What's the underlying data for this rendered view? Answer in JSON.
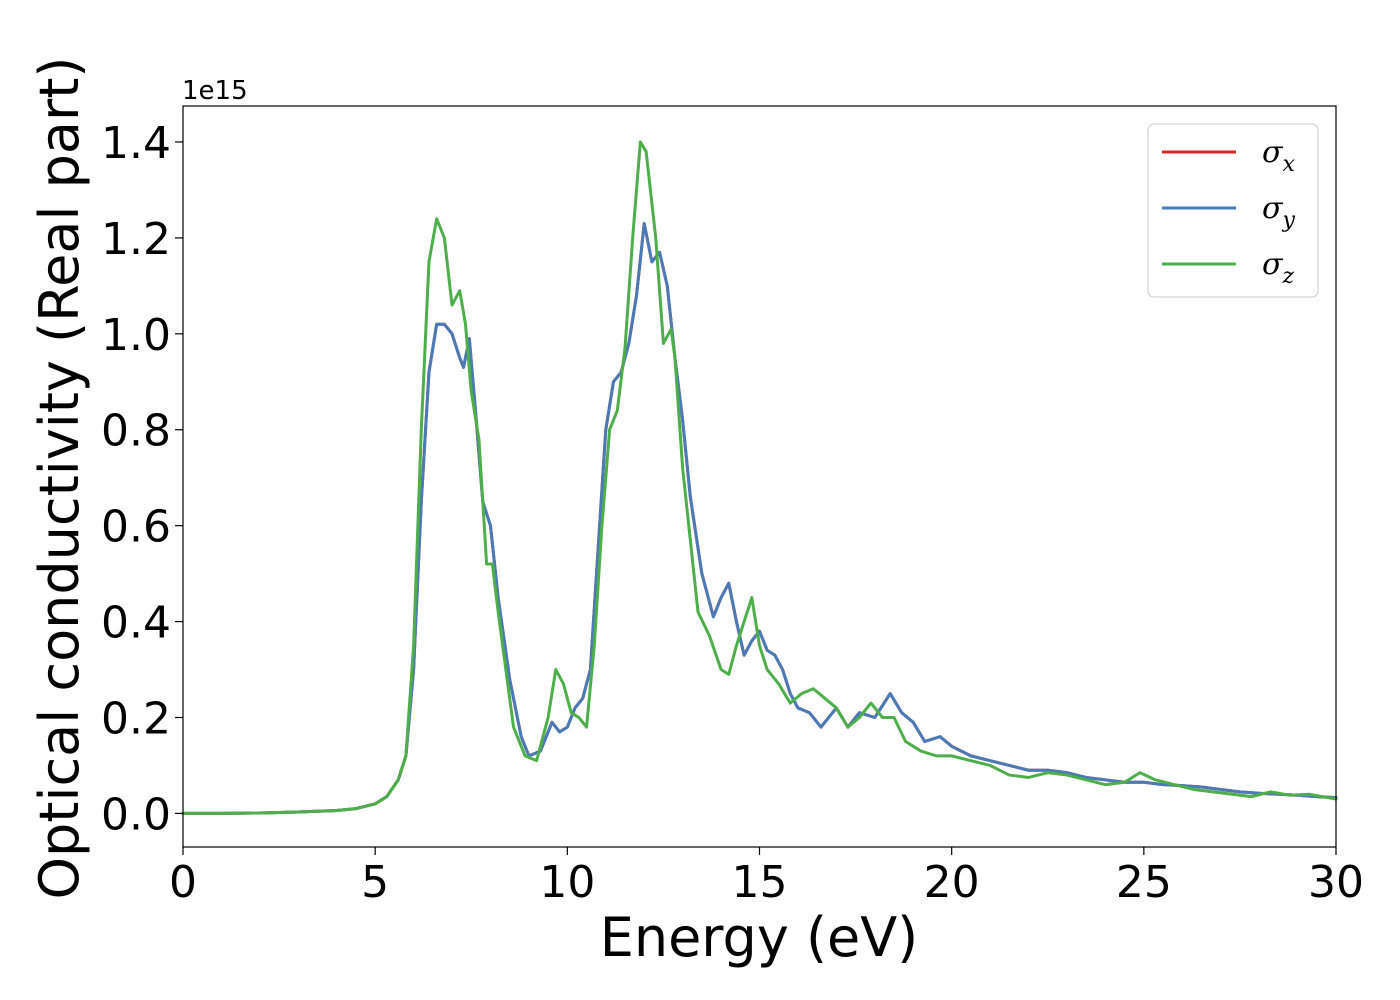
{
  "chart_data": {
    "type": "line",
    "title": "",
    "xlabel": "Energy (eV)",
    "ylabel": "Optical conductivity (Real part)",
    "xlim": [
      0,
      30
    ],
    "ylim": [
      -0.07,
      1.475
    ],
    "y_scale_offset_label": "1e15",
    "x_ticks": [
      0,
      5,
      10,
      15,
      20,
      25,
      30
    ],
    "x_tick_labels": [
      "0",
      "5",
      "10",
      "15",
      "20",
      "25",
      "30"
    ],
    "y_ticks": [
      0.0,
      0.2,
      0.4,
      0.6,
      0.8,
      1.0,
      1.2,
      1.4
    ],
    "y_tick_labels": [
      "0.0",
      "0.2",
      "0.4",
      "0.6",
      "0.8",
      "1.0",
      "1.2",
      "1.4"
    ],
    "grid": false,
    "legend_position": "top-right",
    "series": [
      {
        "name": "σx",
        "legend_symbol": "σ",
        "legend_subscript": "x",
        "color": "#d62728",
        "x": [
          0,
          1,
          2,
          3,
          4,
          4.5,
          5,
          5.3,
          5.6,
          5.8,
          6.0,
          6.2,
          6.4,
          6.6,
          6.8,
          7.0,
          7.2,
          7.3,
          7.45,
          7.6,
          7.8,
          8.0,
          8.2,
          8.5,
          8.8,
          9.0,
          9.3,
          9.6,
          9.8,
          10.0,
          10.2,
          10.4,
          10.6,
          10.8,
          11.0,
          11.2,
          11.4,
          11.6,
          11.8,
          12.0,
          12.2,
          12.4,
          12.6,
          12.8,
          13.0,
          13.2,
          13.5,
          13.8,
          14.0,
          14.2,
          14.4,
          14.6,
          14.8,
          15.0,
          15.2,
          15.4,
          15.6,
          15.8,
          16.0,
          16.3,
          16.6,
          17.0,
          17.3,
          17.6,
          18.0,
          18.4,
          18.7,
          19.0,
          19.3,
          19.7,
          20.0,
          20.5,
          21.0,
          21.5,
          22.0,
          22.5,
          23.0,
          23.5,
          24.0,
          24.5,
          25.0,
          25.5,
          26.0,
          26.5,
          27.0,
          27.5,
          28.0,
          28.5,
          29.0,
          29.5,
          30.0
        ],
        "y": [
          0.0,
          0.0,
          0.001,
          0.003,
          0.006,
          0.01,
          0.02,
          0.035,
          0.07,
          0.12,
          0.3,
          0.65,
          0.92,
          1.02,
          1.02,
          1.0,
          0.95,
          0.93,
          0.99,
          0.85,
          0.65,
          0.6,
          0.45,
          0.28,
          0.16,
          0.12,
          0.13,
          0.19,
          0.17,
          0.18,
          0.22,
          0.24,
          0.3,
          0.55,
          0.8,
          0.9,
          0.92,
          0.98,
          1.08,
          1.23,
          1.15,
          1.17,
          1.1,
          0.95,
          0.82,
          0.66,
          0.5,
          0.41,
          0.45,
          0.48,
          0.4,
          0.33,
          0.36,
          0.38,
          0.34,
          0.33,
          0.3,
          0.25,
          0.22,
          0.21,
          0.18,
          0.22,
          0.18,
          0.21,
          0.2,
          0.25,
          0.21,
          0.19,
          0.15,
          0.16,
          0.14,
          0.12,
          0.11,
          0.1,
          0.09,
          0.09,
          0.085,
          0.075,
          0.07,
          0.065,
          0.065,
          0.06,
          0.058,
          0.055,
          0.05,
          0.045,
          0.042,
          0.04,
          0.038,
          0.035,
          0.033
        ]
      },
      {
        "name": "σy",
        "legend_symbol": "σ",
        "legend_subscript": "y",
        "color": "#4a7bb7",
        "x": [
          0,
          1,
          2,
          3,
          4,
          4.5,
          5,
          5.3,
          5.6,
          5.8,
          6.0,
          6.2,
          6.4,
          6.6,
          6.8,
          7.0,
          7.2,
          7.3,
          7.45,
          7.6,
          7.8,
          8.0,
          8.2,
          8.5,
          8.8,
          9.0,
          9.3,
          9.6,
          9.8,
          10.0,
          10.2,
          10.4,
          10.6,
          10.8,
          11.0,
          11.2,
          11.4,
          11.6,
          11.8,
          12.0,
          12.2,
          12.4,
          12.6,
          12.8,
          13.0,
          13.2,
          13.5,
          13.8,
          14.0,
          14.2,
          14.4,
          14.6,
          14.8,
          15.0,
          15.2,
          15.4,
          15.6,
          15.8,
          16.0,
          16.3,
          16.6,
          17.0,
          17.3,
          17.6,
          18.0,
          18.4,
          18.7,
          19.0,
          19.3,
          19.7,
          20.0,
          20.5,
          21.0,
          21.5,
          22.0,
          22.5,
          23.0,
          23.5,
          24.0,
          24.5,
          25.0,
          25.5,
          26.0,
          26.5,
          27.0,
          27.5,
          28.0,
          28.5,
          29.0,
          29.5,
          30.0
        ],
        "y": [
          0.0,
          0.0,
          0.001,
          0.003,
          0.006,
          0.01,
          0.02,
          0.035,
          0.07,
          0.12,
          0.3,
          0.65,
          0.92,
          1.02,
          1.02,
          1.0,
          0.95,
          0.93,
          0.99,
          0.85,
          0.65,
          0.6,
          0.45,
          0.28,
          0.16,
          0.12,
          0.13,
          0.19,
          0.17,
          0.18,
          0.22,
          0.24,
          0.3,
          0.55,
          0.8,
          0.9,
          0.92,
          0.98,
          1.08,
          1.23,
          1.15,
          1.17,
          1.1,
          0.95,
          0.82,
          0.66,
          0.5,
          0.41,
          0.45,
          0.48,
          0.4,
          0.33,
          0.36,
          0.38,
          0.34,
          0.33,
          0.3,
          0.25,
          0.22,
          0.21,
          0.18,
          0.22,
          0.18,
          0.21,
          0.2,
          0.25,
          0.21,
          0.19,
          0.15,
          0.16,
          0.14,
          0.12,
          0.11,
          0.1,
          0.09,
          0.09,
          0.085,
          0.075,
          0.07,
          0.065,
          0.065,
          0.06,
          0.058,
          0.055,
          0.05,
          0.045,
          0.042,
          0.04,
          0.038,
          0.035,
          0.033
        ]
      },
      {
        "name": "σz",
        "legend_symbol": "σ",
        "legend_subscript": "z",
        "color": "#4daf4a",
        "x": [
          0,
          1,
          2,
          3,
          4,
          4.5,
          5,
          5.3,
          5.6,
          5.8,
          6.0,
          6.2,
          6.4,
          6.6,
          6.8,
          7.0,
          7.2,
          7.35,
          7.5,
          7.7,
          7.9,
          8.05,
          8.2,
          8.4,
          8.6,
          8.9,
          9.2,
          9.5,
          9.7,
          9.9,
          10.1,
          10.3,
          10.5,
          10.7,
          10.9,
          11.1,
          11.3,
          11.5,
          11.7,
          11.9,
          12.05,
          12.3,
          12.5,
          12.7,
          12.8,
          13.0,
          13.2,
          13.4,
          13.7,
          14.0,
          14.2,
          14.4,
          14.6,
          14.8,
          15.0,
          15.2,
          15.5,
          15.8,
          16.1,
          16.4,
          16.7,
          17.0,
          17.3,
          17.6,
          17.9,
          18.2,
          18.5,
          18.8,
          19.2,
          19.6,
          20.0,
          20.5,
          21.0,
          21.5,
          22.0,
          22.5,
          23.0,
          23.5,
          24.0,
          24.5,
          24.9,
          25.3,
          25.8,
          26.3,
          26.8,
          27.3,
          27.8,
          28.3,
          28.8,
          29.3,
          30.0
        ],
        "y": [
          0.0,
          0.0,
          0.001,
          0.003,
          0.006,
          0.01,
          0.02,
          0.035,
          0.07,
          0.12,
          0.35,
          0.8,
          1.15,
          1.24,
          1.2,
          1.06,
          1.09,
          1.02,
          0.88,
          0.78,
          0.52,
          0.52,
          0.42,
          0.3,
          0.18,
          0.12,
          0.11,
          0.2,
          0.3,
          0.27,
          0.21,
          0.2,
          0.18,
          0.35,
          0.6,
          0.8,
          0.84,
          0.97,
          1.2,
          1.4,
          1.38,
          1.2,
          0.98,
          1.01,
          0.95,
          0.72,
          0.57,
          0.42,
          0.37,
          0.3,
          0.29,
          0.35,
          0.4,
          0.45,
          0.35,
          0.3,
          0.27,
          0.23,
          0.25,
          0.26,
          0.24,
          0.22,
          0.18,
          0.2,
          0.23,
          0.2,
          0.2,
          0.15,
          0.13,
          0.12,
          0.12,
          0.11,
          0.1,
          0.08,
          0.075,
          0.085,
          0.08,
          0.07,
          0.06,
          0.065,
          0.085,
          0.07,
          0.06,
          0.05,
          0.045,
          0.04,
          0.035,
          0.045,
          0.038,
          0.04,
          0.03
        ]
      }
    ]
  }
}
